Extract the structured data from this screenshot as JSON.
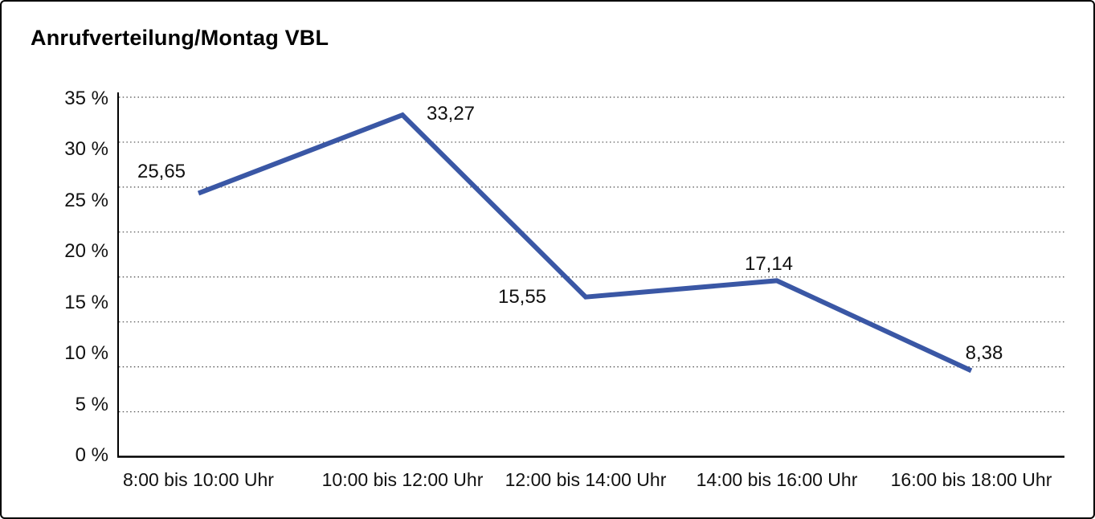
{
  "chart_data": {
    "type": "line",
    "title": "Anrufverteilung/Montag VBL",
    "categories": [
      "8:00 bis 10:00 Uhr",
      "10:00 bis 12:00 Uhr",
      "12:00 bis 14:00 Uhr",
      "14:00 bis 16:00 Uhr",
      "16:00 bis 18:00 Uhr"
    ],
    "values": [
      25.65,
      33.27,
      15.55,
      17.14,
      8.38
    ],
    "point_labels": [
      "25,65",
      "33,27",
      "15,55",
      "17,14",
      "8,38"
    ],
    "y_ticks": [
      "35 %",
      "30 %",
      "25 %",
      "20 %",
      "15 %",
      "10 %",
      "5 %",
      "0 %"
    ],
    "ylim": [
      0,
      35
    ],
    "xlabel": "",
    "ylabel": "",
    "legend": "none",
    "grid": "horizontal-dotted",
    "line_color": "#3A57A5",
    "axis_color": "#000000",
    "grid_color": "#4a4a4a",
    "text_color": "#111111"
  }
}
